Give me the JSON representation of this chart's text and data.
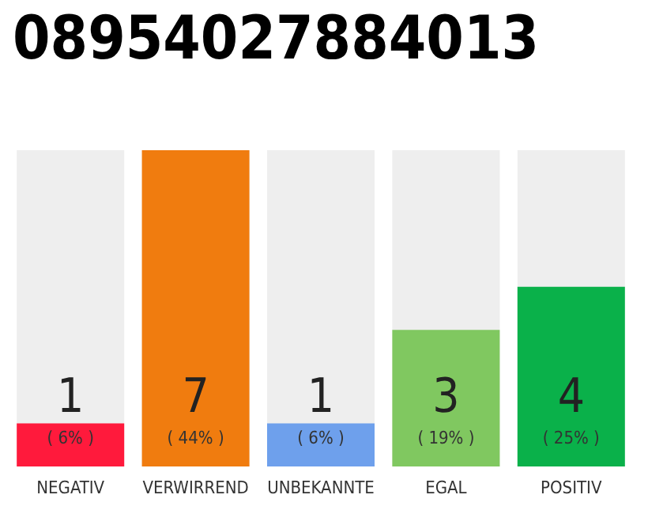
{
  "chart_data": {
    "type": "bar",
    "title": "08954027884013",
    "categories": [
      "NEGATIV",
      "VERWIRREND",
      "UNBEKANNTE",
      "EGAL",
      "POSITIV"
    ],
    "values": [
      6,
      44,
      6,
      19,
      25
    ],
    "colors": [
      "#ff1a3c",
      "#f07c0f",
      "#6ea0ec",
      "#80c860",
      "#0ab14a"
    ],
    "value_labels": [
      "( 6% )",
      "( 44% )",
      "( 6% )",
      "( 19% )",
      "( 25% )"
    ],
    "annotations": [
      "1",
      "7",
      "1",
      "3",
      "4"
    ],
    "grid": false
  }
}
